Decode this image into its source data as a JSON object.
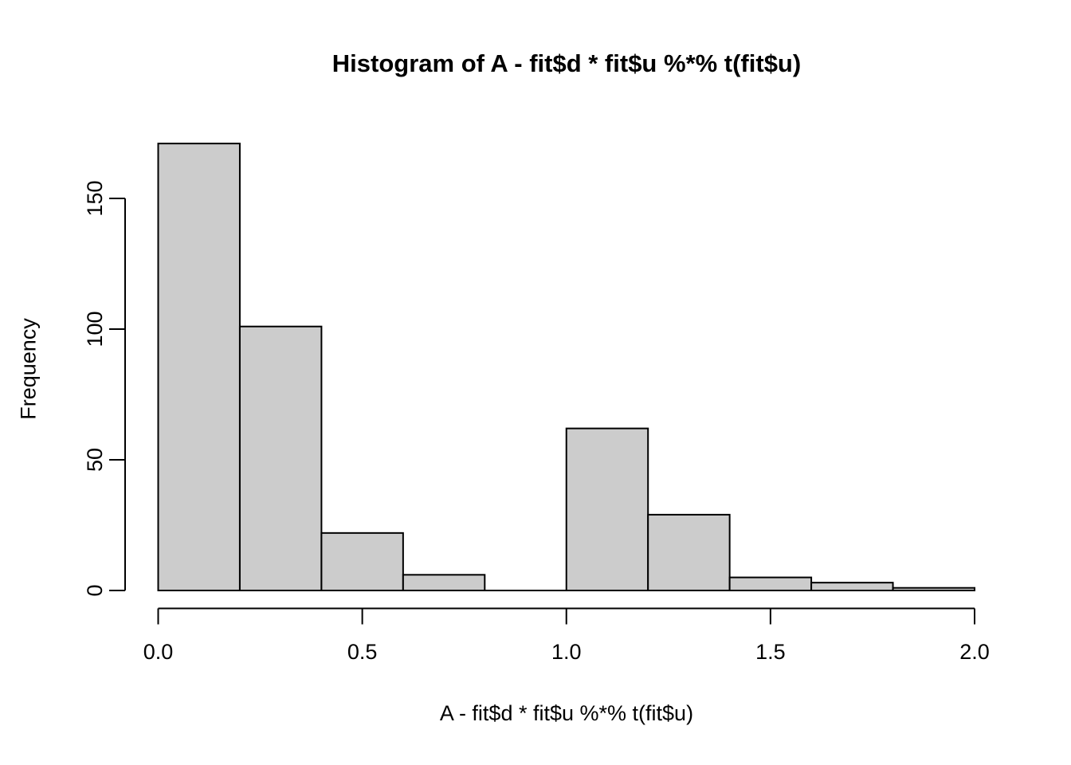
{
  "chart_data": {
    "type": "bar",
    "subtype": "histogram",
    "title": "Histogram of A - fit$d * fit$u %*% t(fit$u)",
    "xlabel": "A - fit$d * fit$u %*% t(fit$u)",
    "ylabel": "Frequency",
    "bin_edges": [
      0.0,
      0.2,
      0.4,
      0.6,
      0.8,
      1.0,
      1.2,
      1.4,
      1.6,
      1.8,
      2.0
    ],
    "values": [
      171,
      101,
      22,
      6,
      0,
      62,
      29,
      5,
      3,
      1
    ],
    "xlim": [
      0.0,
      2.0
    ],
    "ylim": [
      0,
      150
    ],
    "x_ticks": [
      0.0,
      0.5,
      1.0,
      1.5,
      2.0
    ],
    "x_tick_labels": [
      "0.0",
      "0.5",
      "1.0",
      "1.5",
      "2.0"
    ],
    "y_ticks": [
      0,
      50,
      100,
      150
    ],
    "y_tick_labels": [
      "0",
      "50",
      "100",
      "150"
    ],
    "grid": false,
    "legend": null,
    "bar_fill": "#cccccc",
    "bar_stroke": "#000000",
    "axis_color": "#000000",
    "text_color": "#000000",
    "background": "#ffffff"
  }
}
